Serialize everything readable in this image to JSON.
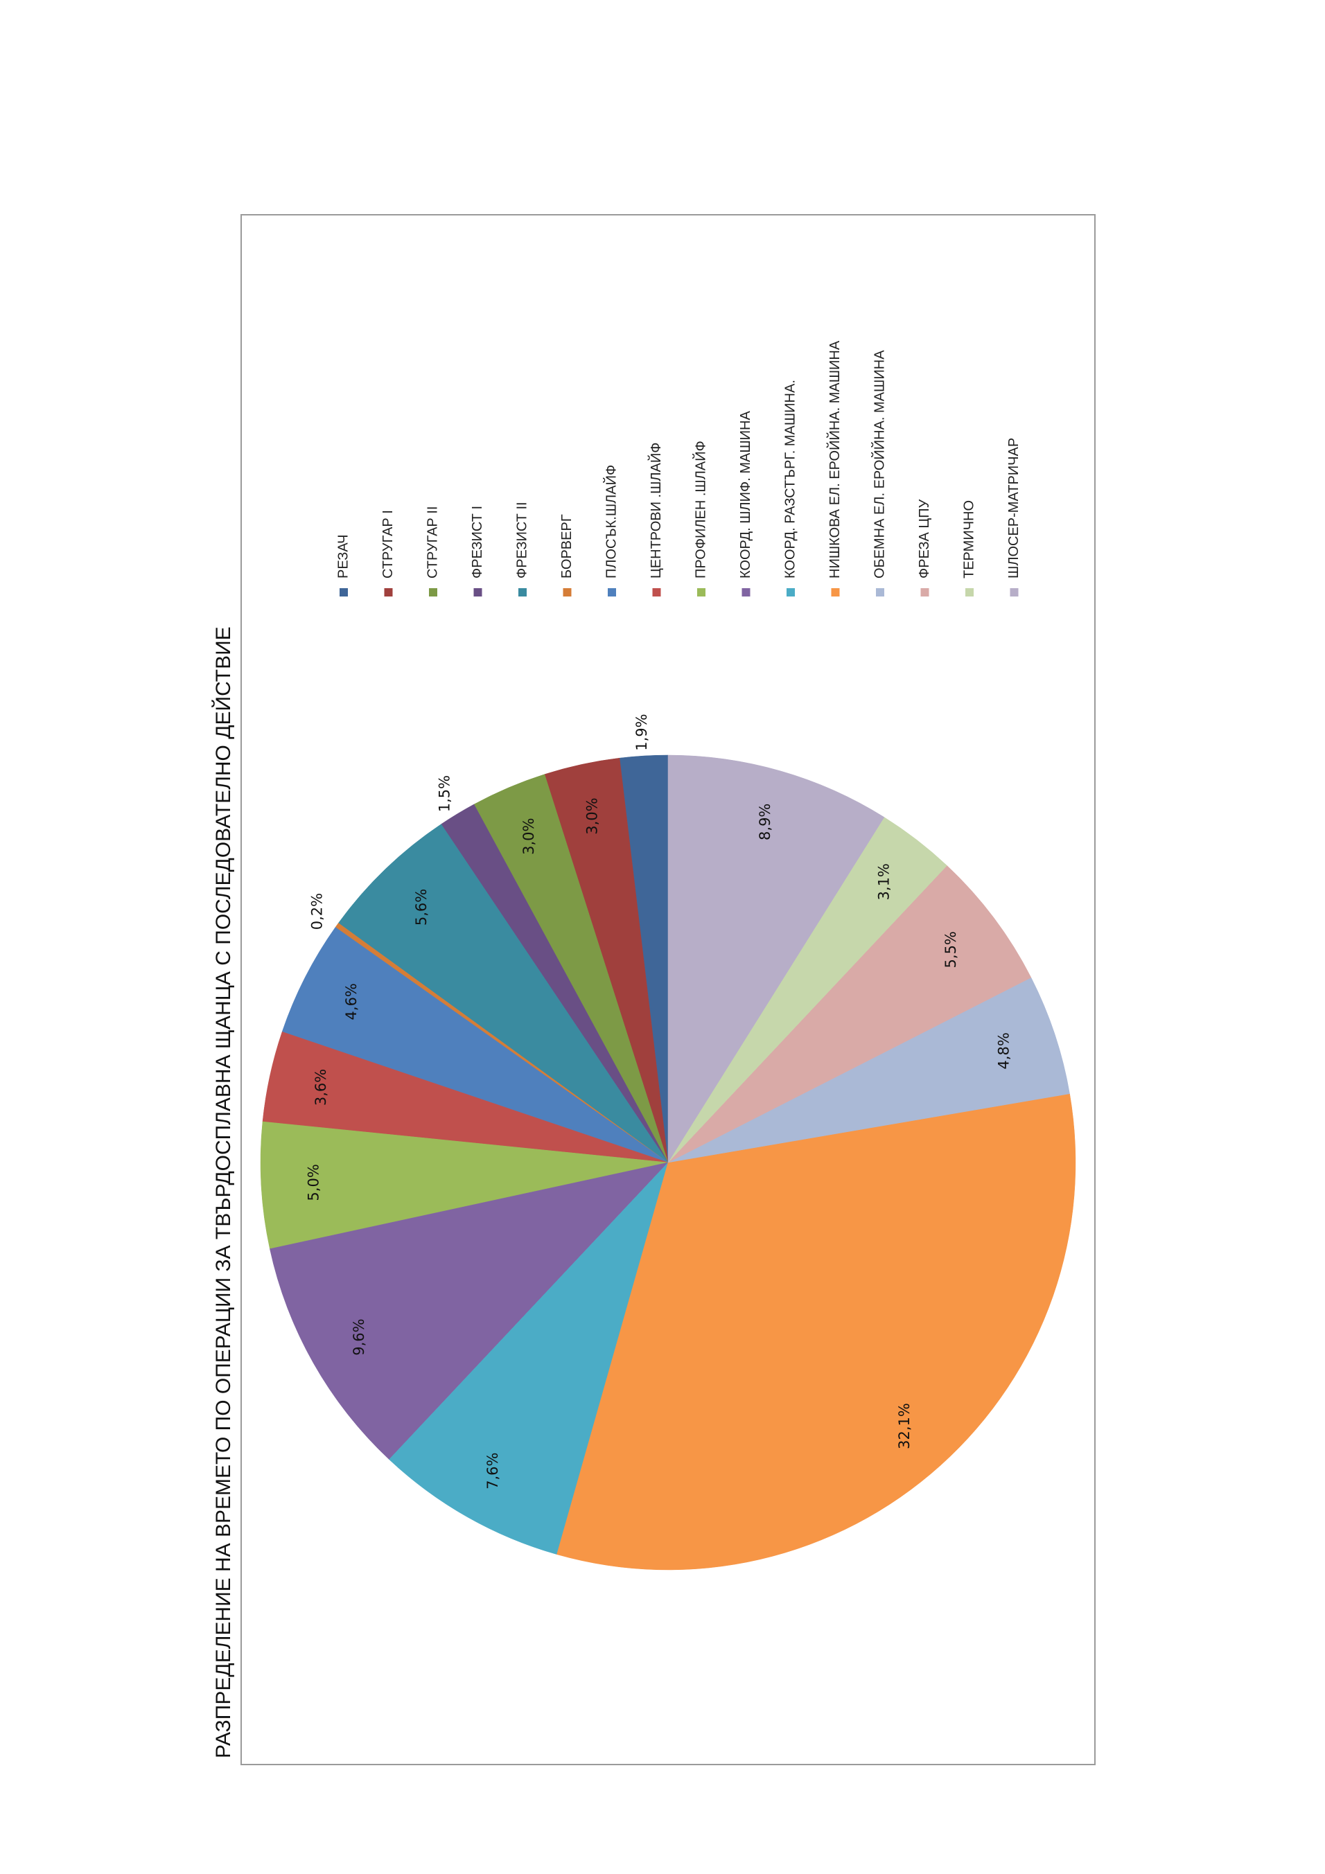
{
  "chart_data": {
    "type": "pie",
    "title": "РАЗПРЕДЕЛЕНИЕ НА ВРЕМЕТО ПО ОПЕРАЦИИ ЗА  ТВЪРДОСПЛАВНА ЩАНЦА С ПОСЛЕДОВАТЕЛНО ДЕЙСТВИЕ",
    "legend_position": "right",
    "slices": [
      {
        "label": "РЕЗАЧ",
        "value": 1.9,
        "value_label": "1,9%",
        "color": "#3f6698"
      },
      {
        "label": "СТРУГАР I",
        "value": 3.0,
        "value_label": "3,0%",
        "color": "#a0403d"
      },
      {
        "label": "СТРУГАР II",
        "value": 3.0,
        "value_label": "3,0%",
        "color": "#7d9a46"
      },
      {
        "label": "ФРЕЗИСТ I",
        "value": 1.5,
        "value_label": "1,5%",
        "color": "#694f85"
      },
      {
        "label": "ФРЕЗИСТ II",
        "value": 5.6,
        "value_label": "5,6%",
        "color": "#3a8ba0"
      },
      {
        "label": "БОРВЕРГ",
        "value": 0.2,
        "value_label": "0,2%",
        "color": "#d57d37"
      },
      {
        "label": "ПЛОСЪК.ШЛАЙФ",
        "value": 4.6,
        "value_label": "4,6%",
        "color": "#4f80bd"
      },
      {
        "label": "ЦЕНТРОВИ .ШЛАЙФ",
        "value": 3.6,
        "value_label": "3,6%",
        "color": "#c0504d"
      },
      {
        "label": "ПРОФИЛЕН .ШЛАЙФ",
        "value": 5.0,
        "value_label": "5,0%",
        "color": "#9bbb59"
      },
      {
        "label": "КООРД. ШЛИФ. МАШИНА",
        "value": 9.6,
        "value_label": "9,6%",
        "color": "#8064a2"
      },
      {
        "label": "КООРД. РАЗСТЪРГ. МАШИНА.",
        "value": 7.6,
        "value_label": "7,6%",
        "color": "#4bacc6"
      },
      {
        "label": "НИШКОВА ЕЛ. ЕРОЙЙНА. МАШИНА",
        "value": 32.1,
        "value_label": "32,1%",
        "color": "#f79646"
      },
      {
        "label": "ОБЕМНА ЕЛ. ЕРОЙЙНА. МАШИНА",
        "value": 4.8,
        "value_label": "4,8%",
        "color": "#aab9d6"
      },
      {
        "label": "ФРЕЗА ЦПУ",
        "value": 5.5,
        "value_label": "5,5%",
        "color": "#d9aaa7"
      },
      {
        "label": "ТЕРМИЧНО",
        "value": 3.1,
        "value_label": "3,1%",
        "color": "#c6d7ab"
      },
      {
        "label": "ШЛОСЕР-МАТРИЧАР",
        "value": 8.9,
        "value_label": "8,9%",
        "color": "#b7aec8"
      }
    ]
  }
}
